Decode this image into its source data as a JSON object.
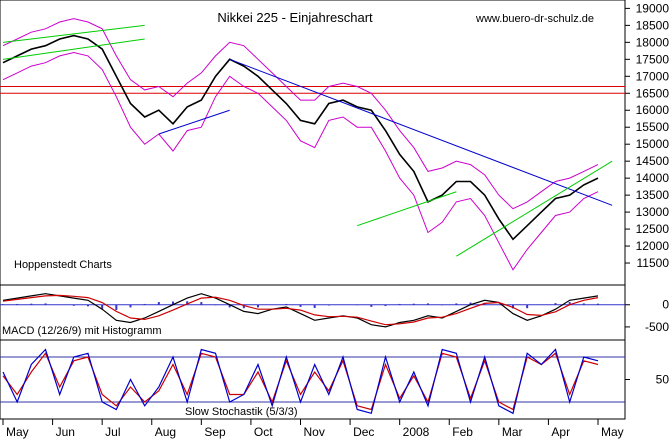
{
  "chart_data": [
    {
      "type": "line",
      "panel": "price",
      "title": "Nikkei 225 - Einjahreschart",
      "source": "www.buero-dr-schulz.de",
      "caption": "Hoppenstedt Charts",
      "ylim": [
        11000,
        19100
      ],
      "y_ticks": [
        11500,
        12000,
        12500,
        13000,
        13500,
        14000,
        14500,
        15000,
        15500,
        16000,
        16500,
        17000,
        17500,
        18000,
        18500,
        19000
      ],
      "x_ticks": [
        "May",
        "Jun",
        "Jul",
        "Aug",
        "Sep",
        "Oct",
        "Nov",
        "Dec",
        "2008",
        "Feb",
        "Mar",
        "Apr",
        "May"
      ],
      "series": [
        {
          "values": [
            17400,
            17600,
            17800,
            17900,
            18100,
            18200,
            18100,
            17800,
            17000,
            16200,
            15800,
            16000,
            15600,
            16100,
            16300,
            17000,
            17500,
            17300,
            17000,
            16600,
            16200,
            15700,
            15600,
            16200,
            16300,
            16100,
            16000,
            15400,
            14700,
            14200,
            13300,
            13500,
            13900,
            13900,
            13500,
            12800,
            12200,
            12600,
            13000,
            13400,
            13500,
            13800,
            14000
          ]
        },
        {
          "values": [
            17900,
            18100,
            18300,
            18400,
            18600,
            18700,
            18600,
            18400,
            17600,
            16900,
            16600,
            16700,
            16400,
            16800,
            17100,
            17600,
            18000,
            17900,
            17500,
            17100,
            16700,
            16300,
            16300,
            16700,
            16800,
            16700,
            16500,
            16000,
            15400,
            14900,
            14200,
            14300,
            14500,
            14400,
            14100,
            13500,
            13100,
            13300,
            13600,
            13900,
            14000,
            14200,
            14400
          ]
        },
        {
          "values": [
            16900,
            17100,
            17300,
            17400,
            17600,
            17700,
            17600,
            17200,
            16400,
            15500,
            15000,
            15300,
            14800,
            15400,
            15500,
            16400,
            17000,
            16700,
            16500,
            16100,
            15700,
            15100,
            14900,
            15700,
            15800,
            15500,
            15500,
            14800,
            14000,
            13500,
            12400,
            12700,
            13300,
            13400,
            12900,
            12100,
            11300,
            11900,
            12400,
            12900,
            13000,
            13400,
            13600
          ]
        }
      ],
      "horizontal_lines": [
        16500,
        16700
      ],
      "trend_lines": [
        {
          "x": [
            0,
            10
          ],
          "y": [
            17500,
            18100
          ]
        },
        {
          "x": [
            0,
            10
          ],
          "y": [
            18000,
            18500
          ]
        },
        {
          "x": [
            11,
            16
          ],
          "y": [
            15300,
            16000
          ]
        },
        {
          "x": [
            16,
            43
          ],
          "y": [
            17500,
            13200
          ]
        },
        {
          "x": [
            25,
            32
          ],
          "y": [
            12600,
            13600
          ]
        },
        {
          "x": [
            32,
            43
          ],
          "y": [
            11700,
            14500
          ]
        }
      ]
    },
    {
      "type": "line",
      "panel": "macd",
      "title": "MACD (12/26/9) mit Histogramm",
      "ylim": [
        -750,
        400
      ],
      "y_ticks": [
        0,
        -500
      ],
      "series": [
        {
          "values": [
            100,
            150,
            200,
            250,
            200,
            150,
            100,
            -100,
            -350,
            -400,
            -300,
            -150,
            0,
            150,
            250,
            150,
            0,
            -150,
            -200,
            -100,
            -50,
            -200,
            -350,
            -300,
            -250,
            -300,
            -450,
            -500,
            -400,
            -350,
            -250,
            -300,
            -150,
            0,
            100,
            50,
            -200,
            -350,
            -250,
            -100,
            100,
            150,
            200
          ]
        },
        {
          "values": [
            80,
            120,
            160,
            200,
            210,
            190,
            160,
            50,
            -150,
            -300,
            -330,
            -250,
            -120,
            20,
            150,
            170,
            100,
            -20,
            -100,
            -100,
            -80,
            -120,
            -230,
            -270,
            -260,
            -280,
            -370,
            -450,
            -430,
            -390,
            -300,
            -280,
            -200,
            -80,
            30,
            50,
            -60,
            -220,
            -240,
            -160,
            0,
            100,
            160
          ]
        }
      ]
    },
    {
      "type": "line",
      "panel": "stochastic",
      "title": "Slow Stochastik (5/3/3)",
      "ylim": [
        0,
        100
      ],
      "y_ticks": [
        50
      ],
      "bands": [
        20,
        80
      ],
      "series": [
        {
          "values": [
            60,
            20,
            70,
            90,
            30,
            80,
            85,
            20,
            10,
            50,
            15,
            40,
            80,
            20,
            90,
            85,
            20,
            30,
            70,
            15,
            80,
            20,
            70,
            30,
            80,
            10,
            5,
            80,
            20,
            60,
            15,
            90,
            85,
            20,
            80,
            15,
            5,
            85,
            70,
            90,
            20,
            80,
            75
          ]
        },
        {
          "values": [
            55,
            30,
            60,
            85,
            40,
            75,
            80,
            30,
            15,
            40,
            20,
            35,
            70,
            30,
            85,
            80,
            30,
            30,
            60,
            20,
            75,
            30,
            60,
            35,
            75,
            15,
            10,
            70,
            25,
            55,
            20,
            85,
            80,
            25,
            75,
            20,
            10,
            80,
            70,
            85,
            30,
            75,
            70
          ]
        }
      ]
    }
  ],
  "colors": {
    "price": "#000000",
    "bollinger": "#cc00cc",
    "horizontal": "#dd0000",
    "trend_blue": "#0000cc",
    "trend_green": "#00cc00",
    "histogram": "#3333cc",
    "macd_line": "#000000",
    "signal_line": "#cc0000",
    "stoch_k": "#0000cc",
    "stoch_d": "#cc0000",
    "band": "#3333aa"
  }
}
